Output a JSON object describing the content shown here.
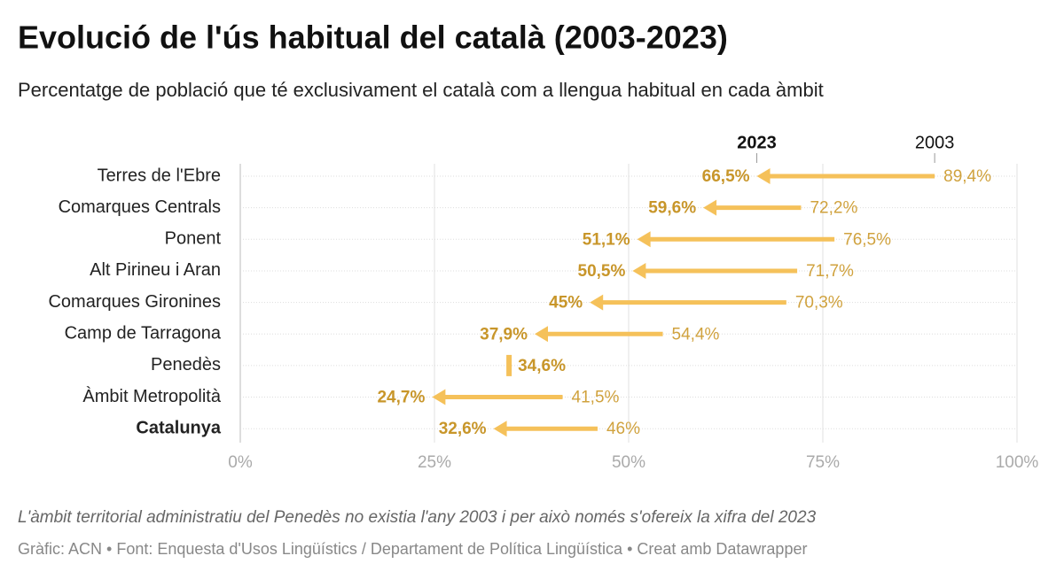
{
  "chart_data": {
    "type": "arrow",
    "title": "Evolució de l'ús habitual del català (2003-2023)",
    "subtitle": "Percentatge de població que té exclusivament el català com a llengua habitual en cada àmbit",
    "categories": [
      "Terres de l'Ebre",
      "Comarques Centrals",
      "Ponent",
      "Alt Pirineu i Aran",
      "Comarques Gironines",
      "Camp de Tarragona",
      "Penedès",
      "Àmbit Metropolità",
      "Catalunya"
    ],
    "series": [
      {
        "name": "2023",
        "color": "#f5c15a",
        "values": [
          66.5,
          59.6,
          51.1,
          50.5,
          45,
          37.9,
          34.6,
          24.7,
          32.6
        ],
        "value_labels": [
          "66,5%",
          "59,6%",
          "51,1%",
          "50,5%",
          "45%",
          "37,9%",
          "34,6%",
          "24,7%",
          "32,6%"
        ]
      },
      {
        "name": "2003",
        "color": "#f5c15a",
        "values": [
          89.4,
          72.2,
          76.5,
          71.7,
          70.3,
          54.4,
          null,
          41.5,
          46
        ],
        "value_labels": [
          "89,4%",
          "72,2%",
          "76,5%",
          "71,7%",
          "70,3%",
          "54,4%",
          null,
          "41,5%",
          "46%"
        ]
      }
    ],
    "xlim": [
      0,
      100
    ],
    "xticks": [
      {
        "value": 0,
        "label": "0%"
      },
      {
        "value": 25,
        "label": "25%"
      },
      {
        "value": 50,
        "label": "50%"
      },
      {
        "value": 75,
        "label": "75%"
      },
      {
        "value": 100,
        "label": "100%"
      }
    ],
    "grid": true,
    "note": "L'àmbit territorial administratiu del Penedès no existia l'any 2003 i per això només s'ofereix la xifra del 2023",
    "source": "Gràfic: ACN • Font: Enquesta d'Usos Lingüístics / Departament de Política Lingüística • Creat amb Datawrapper"
  }
}
